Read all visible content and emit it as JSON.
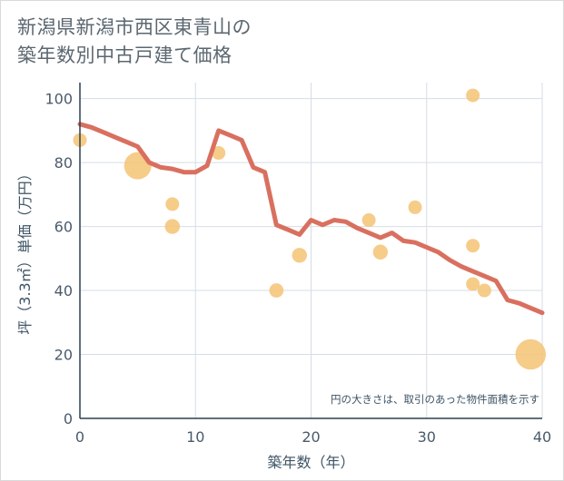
{
  "title": {
    "line1": "新潟県新潟市西区東青山の",
    "line2": "築年数別中古戸建て価格"
  },
  "chart_data": {
    "type": "scatter",
    "xlabel": "築年数（年）",
    "ylabel": "坪（3.3㎡）単価（万円）",
    "xlim": [
      0,
      40
    ],
    "ylim": [
      0,
      105
    ],
    "x_ticks": [
      0,
      10,
      20,
      30,
      40
    ],
    "y_ticks": [
      0,
      20,
      40,
      60,
      80,
      100
    ],
    "grid": true,
    "annotation": "円の大きさは、取引のあった物件面積を示す",
    "colors": {
      "line": "#d9705f",
      "bubble": "#f5c374",
      "grid": "#d5dde6",
      "axis": "#2d3f50"
    },
    "bubbles": [
      {
        "x": 0,
        "y": 87,
        "size": 1
      },
      {
        "x": 5,
        "y": 79,
        "size": 4
      },
      {
        "x": 8,
        "y": 67,
        "size": 1
      },
      {
        "x": 8,
        "y": 60,
        "size": 1.2
      },
      {
        "x": 12,
        "y": 83,
        "size": 1
      },
      {
        "x": 17,
        "y": 40,
        "size": 1.1
      },
      {
        "x": 19,
        "y": 51,
        "size": 1.2
      },
      {
        "x": 25,
        "y": 62,
        "size": 1
      },
      {
        "x": 26,
        "y": 52,
        "size": 1.2
      },
      {
        "x": 29,
        "y": 66,
        "size": 1
      },
      {
        "x": 34,
        "y": 101,
        "size": 1
      },
      {
        "x": 34,
        "y": 54,
        "size": 1
      },
      {
        "x": 34,
        "y": 42,
        "size": 1
      },
      {
        "x": 35,
        "y": 40,
        "size": 1
      },
      {
        "x": 39,
        "y": 20,
        "size": 5
      }
    ],
    "series": [
      {
        "name": "trend",
        "x": [
          0,
          1,
          2,
          3,
          4,
          5,
          6,
          7,
          8,
          9,
          10,
          11,
          12,
          13,
          14,
          15,
          16,
          17,
          18,
          19,
          20,
          21,
          22,
          23,
          24,
          25,
          26,
          27,
          28,
          29,
          30,
          31,
          32,
          33,
          34,
          35,
          36,
          37,
          38,
          39,
          40
        ],
        "y": [
          92,
          91,
          89.5,
          88,
          86.5,
          85,
          80,
          78.5,
          78,
          77,
          77,
          79,
          90,
          88.5,
          87,
          78.5,
          77,
          60.5,
          59,
          57.5,
          62,
          60.5,
          62,
          61.5,
          59.5,
          58,
          56.5,
          58,
          55.5,
          55,
          53.5,
          52,
          49.5,
          47.5,
          46,
          44.5,
          43,
          37,
          36,
          34.5,
          33
        ]
      }
    ]
  }
}
